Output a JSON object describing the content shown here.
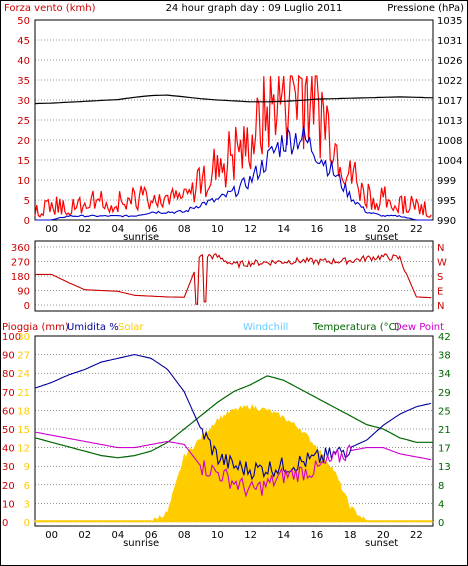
{
  "colors": {
    "wind": "#ff0000",
    "gust_base": "#ff0000",
    "avg_wind": "#0000cc",
    "pressure": "#000000",
    "direction": "#cc0000",
    "rain": "#cc0000",
    "humidity": "#000099",
    "solar": "#ffcc00",
    "windchill": "#66ccff",
    "temperature": "#006600",
    "dewpoint": "#cc00cc"
  },
  "header": {
    "left": "Forza vento (kmh)",
    "center": "24 hour graph day : 09 Luglio 2011",
    "right": "Pressione (hPa)"
  },
  "x_ticks": [
    "00",
    "02",
    "04",
    "06",
    "08",
    "10",
    "12",
    "14",
    "16",
    "18",
    "20",
    "22"
  ],
  "sunrise_label": "sunrise",
  "sunset_label": "sunset",
  "chart_data": [
    {
      "type": "line",
      "title": "24 hour graph day : 09 Luglio 2011",
      "ylabel": "Forza vento (kmh)",
      "y2label": "Pressione (hPa)",
      "ylim": [
        0,
        50
      ],
      "y_ticks": [
        "50",
        "45",
        "40",
        "35",
        "30",
        "25",
        "20",
        "15",
        "10",
        "5",
        "0"
      ],
      "y2_ticks": [
        "1035",
        "1031",
        "1026",
        "1022",
        "1017",
        "1013",
        "1008",
        "1004",
        "999",
        "995",
        "990"
      ],
      "x": [
        0,
        1,
        2,
        3,
        4,
        5,
        6,
        7,
        8,
        9,
        10,
        11,
        12,
        13,
        14,
        15,
        16,
        17,
        18,
        19,
        20,
        21,
        22,
        23,
        24
      ],
      "series": [
        {
          "name": "gust",
          "values": [
            1,
            2,
            2,
            3,
            4,
            3,
            4,
            5,
            6,
            5,
            9,
            12,
            15,
            19,
            27,
            31,
            33,
            29,
            20,
            11,
            5,
            4,
            3,
            2,
            1
          ]
        },
        {
          "name": "avg",
          "values": [
            0,
            0,
            1,
            1,
            1,
            1,
            1,
            2,
            2,
            2,
            4,
            5,
            7,
            10,
            15,
            20,
            21,
            17,
            12,
            6,
            2,
            1,
            1,
            0,
            0
          ]
        },
        {
          "name": "pressure",
          "values": [
            1016.2,
            1016.3,
            1016.5,
            1016.7,
            1016.9,
            1017.1,
            1017.6,
            1018.0,
            1018.1,
            1017.7,
            1017.3,
            1017.0,
            1016.8,
            1016.6,
            1016.6,
            1016.7,
            1016.9,
            1017.2,
            1017.3,
            1017.4,
            1017.5,
            1017.6,
            1017.7,
            1017.6,
            1017.5
          ]
        }
      ]
    },
    {
      "type": "line",
      "ylim": [
        0,
        360
      ],
      "y_ticks": [
        "360",
        "270",
        "180",
        "90",
        "0"
      ],
      "y2_ticks": [
        "N",
        "W",
        "S",
        "E",
        "N"
      ],
      "x": [
        0,
        1,
        2,
        3,
        4,
        5,
        6,
        7,
        8,
        9,
        10,
        11,
        12,
        13,
        14,
        15,
        16,
        17,
        18,
        19,
        20,
        21,
        22,
        23,
        24
      ],
      "series": [
        {
          "name": "direction",
          "values": [
            190,
            190,
            140,
            95,
            90,
            85,
            60,
            55,
            50,
            48,
            310,
            300,
            250,
            260,
            265,
            270,
            275,
            270,
            272,
            275,
            290,
            300,
            290,
            50,
            45
          ]
        }
      ]
    },
    {
      "type": "area",
      "legend": [
        "Pioggia (mm)",
        "Umidita %",
        "Solar",
        "Windchill",
        "Temperatura (°C)",
        "Dew Point"
      ],
      "y_ticks_left": [
        "100",
        "90",
        "80",
        "70",
        "60",
        "50",
        "40",
        "30",
        "20",
        "10",
        "0"
      ],
      "y_ticks_left2": [
        "30",
        "27",
        "24",
        "21",
        "18",
        "15",
        "12",
        "9",
        "6",
        "3",
        "0"
      ],
      "y_ticks_right": [
        "42",
        "38",
        "34",
        "29",
        "25",
        "21",
        "17",
        "13",
        "8",
        "4",
        "0"
      ],
      "x": [
        0,
        1,
        2,
        3,
        4,
        5,
        6,
        7,
        8,
        9,
        10,
        11,
        12,
        13,
        14,
        15,
        16,
        17,
        18,
        19,
        20,
        21,
        22,
        23,
        24
      ],
      "series": [
        {
          "name": "Umidita %",
          "values": [
            72,
            75,
            79,
            82,
            86,
            88,
            90,
            88,
            82,
            70,
            50,
            35,
            30,
            28,
            29,
            30,
            32,
            34,
            36,
            40,
            44,
            52,
            58,
            62,
            64
          ]
        },
        {
          "name": "Solar",
          "values": [
            0,
            0,
            0,
            0,
            0,
            0,
            0,
            0,
            5,
            35,
            45,
            55,
            60,
            62,
            60,
            56,
            50,
            40,
            28,
            8,
            0,
            0,
            0,
            0,
            0
          ]
        },
        {
          "name": "Temperatura (°C)",
          "values": [
            19,
            18,
            17,
            16,
            15,
            14.5,
            15,
            16,
            18,
            21,
            24,
            27,
            29.5,
            31,
            33,
            32,
            30,
            28,
            26,
            24,
            22,
            21,
            19,
            18,
            18
          ]
        },
        {
          "name": "Dew Point",
          "values": [
            14.5,
            14,
            13.5,
            13,
            12.5,
            12,
            12,
            12.5,
            13,
            12.5,
            9,
            8,
            6.5,
            5,
            6,
            7.5,
            8,
            8.5,
            10,
            11.5,
            12,
            12,
            11,
            10.5,
            10
          ]
        },
        {
          "name": "Pioggia (mm)",
          "values": [
            0,
            0,
            0,
            0,
            0,
            0,
            0,
            0,
            0,
            0,
            0,
            0,
            0,
            0,
            0,
            0,
            0,
            0,
            0,
            0,
            0,
            0,
            0,
            0,
            0
          ]
        }
      ]
    }
  ]
}
